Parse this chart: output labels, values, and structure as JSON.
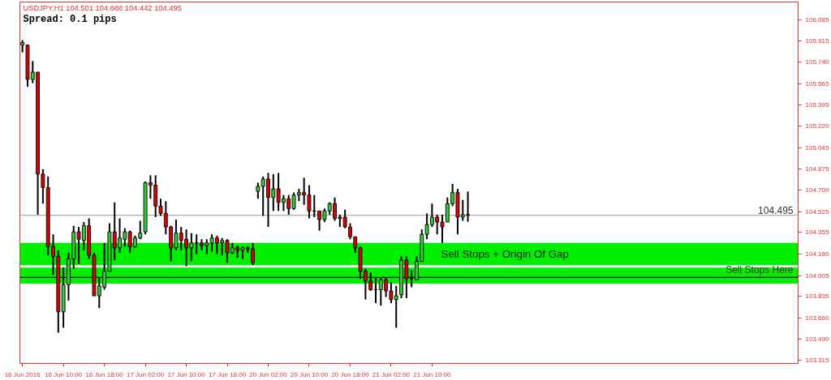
{
  "chart_data": {
    "type": "candlestick",
    "title": "USDJPY,H1  104.501 104.688 104.442 104.495",
    "annotations": [
      "Spread: 0.1 pips"
    ],
    "categories": [
      "16 Jun 2016",
      null,
      null,
      null,
      null,
      null,
      null,
      null,
      "16 Jun 10:00",
      null,
      null,
      null,
      null,
      null,
      null,
      null,
      "16 Jun 18:00",
      null,
      null,
      null,
      null,
      null,
      null,
      null,
      "17 Jun 02:00",
      null,
      null,
      null,
      null,
      null,
      null,
      null,
      "17 Jun 10:00",
      null,
      null,
      null,
      null,
      null,
      null,
      null,
      "17 Jun 18:00",
      null,
      null,
      null,
      null,
      null,
      null,
      null,
      "20 Jun 02:00",
      null,
      null,
      null,
      null,
      null,
      null,
      null,
      "20 Jun 10:00",
      null,
      null,
      null,
      null,
      null,
      null,
      null,
      "20 Jun 18:00",
      null,
      null,
      null,
      null,
      null,
      null,
      null,
      "21 Jun 02:00",
      null,
      null,
      null,
      null,
      null,
      null,
      null,
      "21 Jun 10:00",
      null,
      null,
      null,
      null,
      null,
      null,
      null,
      null,
      null,
      null,
      null,
      null,
      null,
      null,
      null,
      null,
      null,
      null,
      null,
      null,
      null,
      null,
      null,
      null,
      null,
      null,
      null,
      null,
      null,
      null,
      null,
      null,
      null,
      null,
      null,
      null,
      null,
      null,
      null,
      null,
      null,
      null,
      null,
      null,
      null,
      null,
      null,
      null,
      null,
      null,
      null,
      null,
      null,
      null,
      null,
      null,
      null,
      null,
      null,
      null,
      null,
      null,
      null,
      null,
      null,
      null,
      null,
      null,
      null,
      null,
      null
    ],
    "ohlc": [
      [
        105.88,
        105.92,
        105.82,
        105.9
      ],
      [
        105.88,
        105.88,
        105.54,
        105.6
      ],
      [
        105.6,
        105.75,
        105.57,
        105.66
      ],
      [
        105.66,
        105.66,
        104.5,
        104.83
      ],
      [
        104.83,
        104.87,
        104.59,
        104.72
      ],
      [
        104.72,
        104.81,
        104.17,
        104.24
      ],
      [
        104.24,
        104.34,
        104.01,
        104.16
      ],
      [
        104.16,
        104.21,
        103.54,
        103.71
      ],
      [
        103.71,
        104.07,
        103.58,
        103.93
      ],
      [
        103.93,
        104.19,
        103.8,
        104.14
      ],
      [
        104.14,
        104.41,
        104.06,
        104.36
      ],
      [
        104.36,
        104.4,
        104.1,
        104.3
      ],
      [
        104.29,
        104.44,
        104.21,
        104.41
      ],
      [
        104.41,
        104.47,
        104.14,
        104.17
      ],
      [
        104.17,
        104.19,
        103.84,
        103.84
      ],
      [
        103.84,
        103.99,
        103.74,
        103.92
      ],
      [
        103.91,
        104.27,
        103.89,
        104.04
      ],
      [
        104.04,
        104.43,
        104.04,
        104.36
      ],
      [
        104.36,
        104.6,
        104.13,
        104.23
      ],
      [
        104.23,
        104.47,
        104.19,
        104.31
      ],
      [
        104.3,
        104.39,
        104.24,
        104.36
      ],
      [
        104.36,
        104.37,
        104.19,
        104.24
      ],
      [
        104.24,
        104.33,
        104.23,
        104.31
      ],
      [
        104.31,
        104.45,
        104.3,
        104.35
      ],
      [
        104.36,
        104.77,
        104.34,
        104.76
      ],
      [
        104.76,
        104.82,
        104.63,
        104.74
      ],
      [
        104.74,
        104.82,
        104.48,
        104.57
      ],
      [
        104.57,
        104.63,
        104.49,
        104.51
      ],
      [
        104.51,
        104.61,
        104.34,
        104.4
      ],
      [
        104.4,
        104.41,
        104.12,
        104.23
      ],
      [
        104.23,
        104.46,
        104.21,
        104.35
      ],
      [
        104.35,
        104.4,
        104.21,
        104.29
      ],
      [
        104.3,
        104.38,
        104.08,
        104.23
      ],
      [
        104.23,
        104.35,
        104.12,
        104.27
      ],
      [
        104.27,
        104.34,
        104.18,
        104.27
      ],
      [
        104.27,
        104.3,
        104.21,
        104.25
      ],
      [
        104.25,
        104.3,
        104.18,
        104.27
      ],
      [
        104.27,
        104.34,
        104.2,
        104.31
      ],
      [
        104.31,
        104.33,
        104.18,
        104.27
      ],
      [
        104.27,
        104.31,
        104.17,
        104.29
      ],
      [
        104.29,
        104.3,
        104.11,
        104.19
      ],
      [
        104.19,
        104.27,
        104.18,
        104.23
      ],
      [
        104.23,
        104.25,
        104.15,
        104.21
      ],
      [
        104.21,
        104.24,
        104.14,
        104.23
      ],
      [
        104.23,
        104.24,
        104.19,
        104.22
      ],
      [
        104.22,
        104.27,
        104.09,
        104.11
      ],
      [
        104.69,
        104.76,
        104.63,
        104.73
      ],
      [
        104.73,
        104.81,
        104.49,
        104.79
      ],
      [
        104.79,
        104.84,
        104.4,
        104.64
      ],
      [
        104.64,
        104.83,
        104.53,
        104.71
      ],
      [
        104.71,
        104.84,
        104.53,
        104.6
      ],
      [
        104.6,
        104.66,
        104.53,
        104.63
      ],
      [
        104.63,
        104.66,
        104.5,
        104.55
      ],
      [
        104.55,
        104.68,
        104.54,
        104.66
      ],
      [
        104.66,
        104.71,
        104.61,
        104.68
      ],
      [
        104.68,
        104.8,
        104.58,
        104.66
      ],
      [
        104.66,
        104.74,
        104.47,
        104.53
      ],
      [
        104.53,
        104.66,
        104.48,
        104.53
      ],
      [
        104.53,
        104.53,
        104.37,
        104.46
      ],
      [
        104.46,
        104.55,
        104.44,
        104.53
      ],
      [
        104.53,
        104.6,
        104.5,
        104.59
      ],
      [
        104.59,
        104.64,
        104.45,
        104.47
      ],
      [
        104.48,
        104.5,
        104.4,
        104.47
      ],
      [
        104.48,
        104.54,
        104.39,
        104.4
      ],
      [
        104.4,
        104.43,
        104.3,
        104.32
      ],
      [
        104.32,
        104.32,
        104.19,
        104.23
      ],
      [
        104.23,
        104.24,
        103.98,
        104.04
      ],
      [
        104.04,
        104.06,
        103.81,
        103.96
      ],
      [
        103.96,
        104.03,
        103.88,
        103.89
      ],
      [
        103.89,
        103.99,
        103.78,
        103.89
      ],
      [
        103.89,
        103.99,
        103.76,
        103.97
      ],
      [
        103.97,
        103.99,
        103.83,
        103.88
      ],
      [
        103.88,
        103.95,
        103.78,
        103.81
      ],
      [
        103.81,
        103.92,
        103.58,
        103.84
      ],
      [
        103.85,
        104.16,
        103.82,
        104.13
      ],
      [
        104.13,
        104.16,
        103.82,
        103.98
      ],
      [
        103.98,
        104.05,
        103.91,
        103.98
      ],
      [
        103.97,
        104.16,
        103.97,
        104.12
      ],
      [
        104.12,
        104.38,
        104.12,
        104.34
      ],
      [
        104.34,
        104.51,
        104.3,
        104.42
      ],
      [
        104.42,
        104.59,
        104.4,
        104.48
      ],
      [
        104.48,
        104.5,
        104.34,
        104.44
      ],
      [
        104.44,
        104.5,
        104.27,
        104.4
      ],
      [
        104.44,
        104.64,
        104.44,
        104.59
      ],
      [
        104.59,
        104.75,
        104.57,
        104.68
      ],
      [
        104.68,
        104.71,
        104.34,
        104.48
      ],
      [
        104.48,
        104.62,
        104.45,
        104.5
      ],
      [
        104.501,
        104.688,
        104.442,
        104.495
      ],
      null,
      null,
      null,
      null,
      null,
      null,
      null,
      null,
      null,
      null,
      null,
      null,
      null,
      null,
      null,
      null,
      null,
      null,
      null,
      null,
      null,
      null,
      null,
      null,
      null,
      null,
      null,
      null,
      null,
      null,
      null,
      null,
      null,
      null,
      null,
      null,
      null,
      null,
      null,
      null,
      null,
      null,
      null,
      null,
      null,
      null,
      null,
      null,
      null,
      null,
      null,
      null,
      null,
      null,
      null,
      null,
      null,
      null,
      null,
      null,
      null,
      null,
      null,
      null
    ],
    "colors": [
      "#33cc33",
      "#dd0000",
      "#33cc33",
      "#dd0000",
      "#dd0000",
      "#dd0000",
      "#dd0000",
      "#dd0000",
      "#33cc33",
      "#33cc33",
      "#33cc33",
      "#dd0000",
      "#33cc33",
      "#dd0000",
      "#dd0000",
      "#33cc33",
      "#33cc33",
      "#33cc33",
      "#dd0000",
      "#33cc33",
      "#33cc33",
      "#dd0000",
      "#33cc33",
      "#33cc33",
      "#33cc33",
      "#dd0000",
      "#dd0000",
      "#dd0000",
      "#dd0000",
      "#dd0000",
      "#33cc33",
      "#dd0000",
      "#dd0000",
      "#33cc33",
      "#000000",
      "#dd0000",
      "#33cc33",
      "#33cc33",
      "#dd0000",
      "#33cc33",
      "#dd0000",
      "#33cc33",
      "#dd0000",
      "#33cc33",
      "#dd0000",
      "#dd0000",
      "#33cc33",
      "#33cc33",
      "#dd0000",
      "#33cc33",
      "#dd0000",
      "#33cc33",
      "#dd0000",
      "#33cc33",
      "#33cc33",
      "#dd0000",
      "#dd0000",
      "#000000",
      "#dd0000",
      "#33cc33",
      "#33cc33",
      "#dd0000",
      "#dd0000",
      "#dd0000",
      "#dd0000",
      "#dd0000",
      "#dd0000",
      "#dd0000",
      "#dd0000",
      "#000000",
      "#33cc33",
      "#dd0000",
      "#dd0000",
      "#33cc33",
      "#33cc33",
      "#dd0000",
      "#000000",
      "#33cc33",
      "#33cc33",
      "#33cc33",
      "#33cc33",
      "#dd0000",
      "#dd0000",
      "#33cc33",
      "#33cc33",
      "#dd0000",
      "#33cc33",
      "#dd0000",
      null,
      null,
      null,
      null,
      null,
      null,
      null,
      null,
      null,
      null,
      null,
      null,
      null,
      null,
      null,
      null,
      null,
      null,
      null,
      null,
      null,
      null,
      null,
      null,
      null,
      null,
      null,
      null,
      null,
      null,
      null,
      null,
      null,
      null,
      null,
      null,
      null,
      null,
      null,
      null,
      null,
      null,
      null,
      null,
      null,
      null,
      null,
      null,
      null,
      null,
      null,
      null,
      null,
      null,
      null,
      null,
      null,
      null,
      null,
      null,
      null,
      null,
      null,
      null
    ],
    "ylim": [
      103.29,
      106.23
    ],
    "yticks": [
      103.315,
      {
        "value": 103.49,
        "label": "103.490"
      },
      {
        "value": 103.66,
        "label": "103.660"
      },
      103.835,
      104.005,
      {
        "value": 104.18,
        "label": "104.180"
      },
      104.355,
      104.525,
      {
        "value": 104.7,
        "label": "104.700"
      },
      104.875,
      105.045,
      {
        "value": 105.22,
        "label": "105.220"
      },
      105.395,
      105.565,
      {
        "value": 105.74,
        "label": "105.740"
      },
      105.915,
      106.085
    ],
    "ref_lines": [
      {
        "axis": "y",
        "value": 104.495,
        "label": "104.495",
        "color": "#b0b0b0"
      },
      {
        "axis": "y",
        "value": 103.99,
        "label": "Sell Stops Here",
        "color": "#000000"
      }
    ],
    "bands": [
      {
        "axis": "y",
        "from": 104.09,
        "to": 104.27,
        "label": "Sell Stops + Origin Of Gap",
        "color": "#00ee00"
      },
      {
        "axis": "y",
        "from": 103.94,
        "to": 104.07,
        "color": "#00ee00"
      }
    ]
  }
}
